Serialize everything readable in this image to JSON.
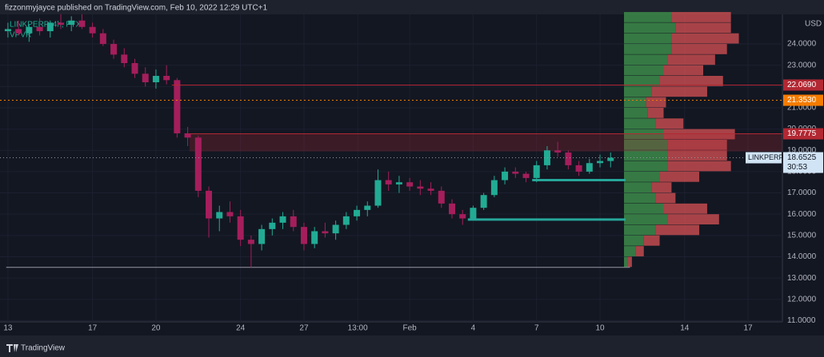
{
  "header": {
    "text": "fizzonmyjayce published on TradingView.com, Feb 10, 2022 12:29 UTC+1"
  },
  "footer": {
    "brand": "TradingView"
  },
  "chart_data": {
    "type": "candlestick",
    "symbol_label": "LINKPERP, 4h, FTX",
    "indicator_label": "VPVR",
    "currency": "USD",
    "up_color": "#22ab94",
    "down_color": "#a51e5c",
    "x": [
      0,
      12,
      24,
      36,
      48,
      60,
      72,
      84,
      96,
      108,
      120,
      132,
      144,
      156,
      168,
      180,
      192,
      204,
      216,
      228,
      240,
      252,
      264,
      276,
      288,
      300,
      312,
      324,
      336,
      348,
      360,
      372,
      384,
      396,
      408,
      420,
      432,
      444,
      456,
      468,
      480,
      492,
      504,
      516,
      528,
      540,
      552,
      564,
      576,
      588,
      600,
      612,
      624,
      636,
      648,
      660,
      672,
      684
    ],
    "candles": [
      [
        24.6,
        25.0,
        24.3,
        24.7
      ],
      [
        24.7,
        25.1,
        24.4,
        24.5
      ],
      [
        24.5,
        24.9,
        24.1,
        24.8
      ],
      [
        24.8,
        25.2,
        24.4,
        24.6
      ],
      [
        24.6,
        25.1,
        24.3,
        25.0
      ],
      [
        25.0,
        25.4,
        24.7,
        24.9
      ],
      [
        24.9,
        25.3,
        24.6,
        25.1
      ],
      [
        25.1,
        25.4,
        24.7,
        24.8
      ],
      [
        24.8,
        25.0,
        24.3,
        24.5
      ],
      [
        24.5,
        24.7,
        23.9,
        24.0
      ],
      [
        24.0,
        24.2,
        23.3,
        23.5
      ],
      [
        23.5,
        23.8,
        22.9,
        23.1
      ],
      [
        23.1,
        23.3,
        22.4,
        22.6
      ],
      [
        22.6,
        22.9,
        22.0,
        22.2
      ],
      [
        22.2,
        22.8,
        21.9,
        22.5
      ],
      [
        22.5,
        23.0,
        22.1,
        22.3
      ],
      [
        22.3,
        22.4,
        19.6,
        19.8
      ],
      [
        19.8,
        20.1,
        19.2,
        19.6
      ],
      [
        19.6,
        19.7,
        16.8,
        17.1
      ],
      [
        17.1,
        17.3,
        14.9,
        15.8
      ],
      [
        15.8,
        16.4,
        15.2,
        16.1
      ],
      [
        16.1,
        16.6,
        15.6,
        15.9
      ],
      [
        15.9,
        16.2,
        14.5,
        14.8
      ],
      [
        14.8,
        15.0,
        13.5,
        14.6
      ],
      [
        14.6,
        15.5,
        14.3,
        15.3
      ],
      [
        15.3,
        15.8,
        15.0,
        15.6
      ],
      [
        15.6,
        16.1,
        15.3,
        15.9
      ],
      [
        15.9,
        16.2,
        15.2,
        15.4
      ],
      [
        15.4,
        15.6,
        14.3,
        14.6
      ],
      [
        14.6,
        15.4,
        14.4,
        15.2
      ],
      [
        15.2,
        15.6,
        14.9,
        15.1
      ],
      [
        15.1,
        15.7,
        14.8,
        15.5
      ],
      [
        15.5,
        16.1,
        15.3,
        15.9
      ],
      [
        15.9,
        16.4,
        15.7,
        16.2
      ],
      [
        16.2,
        16.6,
        15.9,
        16.4
      ],
      [
        16.4,
        18.1,
        16.3,
        17.6
      ],
      [
        17.6,
        18.0,
        17.1,
        17.4
      ],
      [
        17.4,
        17.8,
        17.0,
        17.5
      ],
      [
        17.5,
        17.7,
        17.1,
        17.3
      ],
      [
        17.3,
        17.6,
        16.9,
        17.2
      ],
      [
        17.2,
        17.5,
        16.9,
        17.1
      ],
      [
        17.1,
        17.3,
        16.3,
        16.5
      ],
      [
        16.5,
        16.7,
        15.8,
        16.0
      ],
      [
        16.0,
        16.2,
        15.5,
        15.8
      ],
      [
        15.8,
        16.4,
        15.7,
        16.3
      ],
      [
        16.3,
        17.0,
        16.2,
        16.9
      ],
      [
        16.9,
        17.8,
        16.8,
        17.6
      ],
      [
        17.6,
        18.2,
        17.4,
        18.0
      ],
      [
        18.0,
        18.2,
        17.7,
        17.9
      ],
      [
        17.9,
        18.0,
        17.5,
        17.7
      ],
      [
        17.7,
        18.5,
        17.5,
        18.3
      ],
      [
        18.3,
        19.2,
        18.1,
        19.0
      ],
      [
        19.0,
        19.4,
        18.7,
        18.9
      ],
      [
        18.9,
        19.0,
        18.1,
        18.3
      ],
      [
        18.3,
        18.5,
        17.8,
        18.0
      ],
      [
        18.0,
        18.6,
        17.9,
        18.4
      ],
      [
        18.4,
        18.8,
        18.2,
        18.5
      ],
      [
        18.5,
        18.9,
        18.2,
        18.6525
      ]
    ],
    "xlim": [
      -9,
      879
    ],
    "ylim": [
      10.94,
      25.39
    ],
    "xticks": [
      {
        "value": 0,
        "label": "13"
      },
      {
        "value": 96,
        "label": "17"
      },
      {
        "value": 168,
        "label": "20"
      },
      {
        "value": 264,
        "label": "24"
      },
      {
        "value": 336,
        "label": "27"
      },
      {
        "value": 397,
        "label": "13:00"
      },
      {
        "value": 456,
        "label": "Feb"
      },
      {
        "value": 528,
        "label": "4"
      },
      {
        "value": 600,
        "label": "7"
      },
      {
        "value": 672,
        "label": "10"
      },
      {
        "value": 768,
        "label": "14"
      },
      {
        "value": 840,
        "label": "17"
      }
    ],
    "yticks": [
      {
        "value": 11,
        "label": "11.0000"
      },
      {
        "value": 12,
        "label": "12.0000"
      },
      {
        "value": 13,
        "label": "13.0000"
      },
      {
        "value": 14,
        "label": "14.0000"
      },
      {
        "value": 15,
        "label": "15.0000"
      },
      {
        "value": 16,
        "label": "16.0000"
      },
      {
        "value": 17,
        "label": "17.0000"
      },
      {
        "value": 18,
        "label": "18.0000"
      },
      {
        "value": 19,
        "label": "19.0000"
      },
      {
        "value": 20,
        "label": "20.0000"
      },
      {
        "value": 21,
        "label": "21.0000"
      },
      {
        "value": 22,
        "label": "22.0000"
      },
      {
        "value": 23,
        "label": "23.0000"
      },
      {
        "value": 24,
        "label": "24.0000"
      }
    ],
    "grid": true,
    "levels": [
      {
        "value": 22.069,
        "value_label": "22.0690",
        "color": "#b22833",
        "style": "solid",
        "from": 186
      },
      {
        "value": 21.353,
        "value_label": "21.3530",
        "color": "#f57c00",
        "style": "dotted",
        "from": -9
      },
      {
        "value": 19.7775,
        "value_label": "19.7775",
        "color": "#b22833",
        "style": "solid",
        "from": 206
      }
    ],
    "zone": {
      "top": 19.7775,
      "bottom": 18.95,
      "from": 206,
      "color": "#b22833"
    },
    "support_lines": [
      {
        "value": 17.6,
        "from": 595,
        "to": 701,
        "color": "#26a69a"
      },
      {
        "value": 15.75,
        "from": 522,
        "to": 701,
        "color": "#26a69a"
      },
      {
        "value": 13.5,
        "from": -2,
        "to": 706,
        "color": "#9598a1"
      }
    ],
    "last_price": {
      "value": 18.6525,
      "value_label": "18.6525",
      "name": "LINKPERP",
      "countdown": "30:53"
    },
    "vpvr": {
      "bins": [
        13.5,
        14,
        14.5,
        15,
        15.5,
        16,
        16.5,
        17,
        17.5,
        18,
        18.5,
        19,
        19.5,
        20,
        20.5,
        21,
        21.5,
        22,
        22.5,
        23,
        23.5,
        24,
        24.5,
        25,
        25.5
      ],
      "up": [
        5,
        15,
        25,
        40,
        55,
        50,
        40,
        35,
        45,
        55,
        55,
        55,
        50,
        40,
        30,
        28,
        35,
        45,
        50,
        55,
        60,
        60,
        65,
        60
      ],
      "down": [
        5,
        10,
        20,
        55,
        65,
        55,
        25,
        25,
        50,
        80,
        75,
        75,
        90,
        35,
        20,
        25,
        70,
        80,
        50,
        60,
        70,
        85,
        70,
        75
      ],
      "xlim": [
        0,
        200
      ],
      "up_color": "#3d8b4a",
      "down_color": "#c24b4f"
    }
  }
}
